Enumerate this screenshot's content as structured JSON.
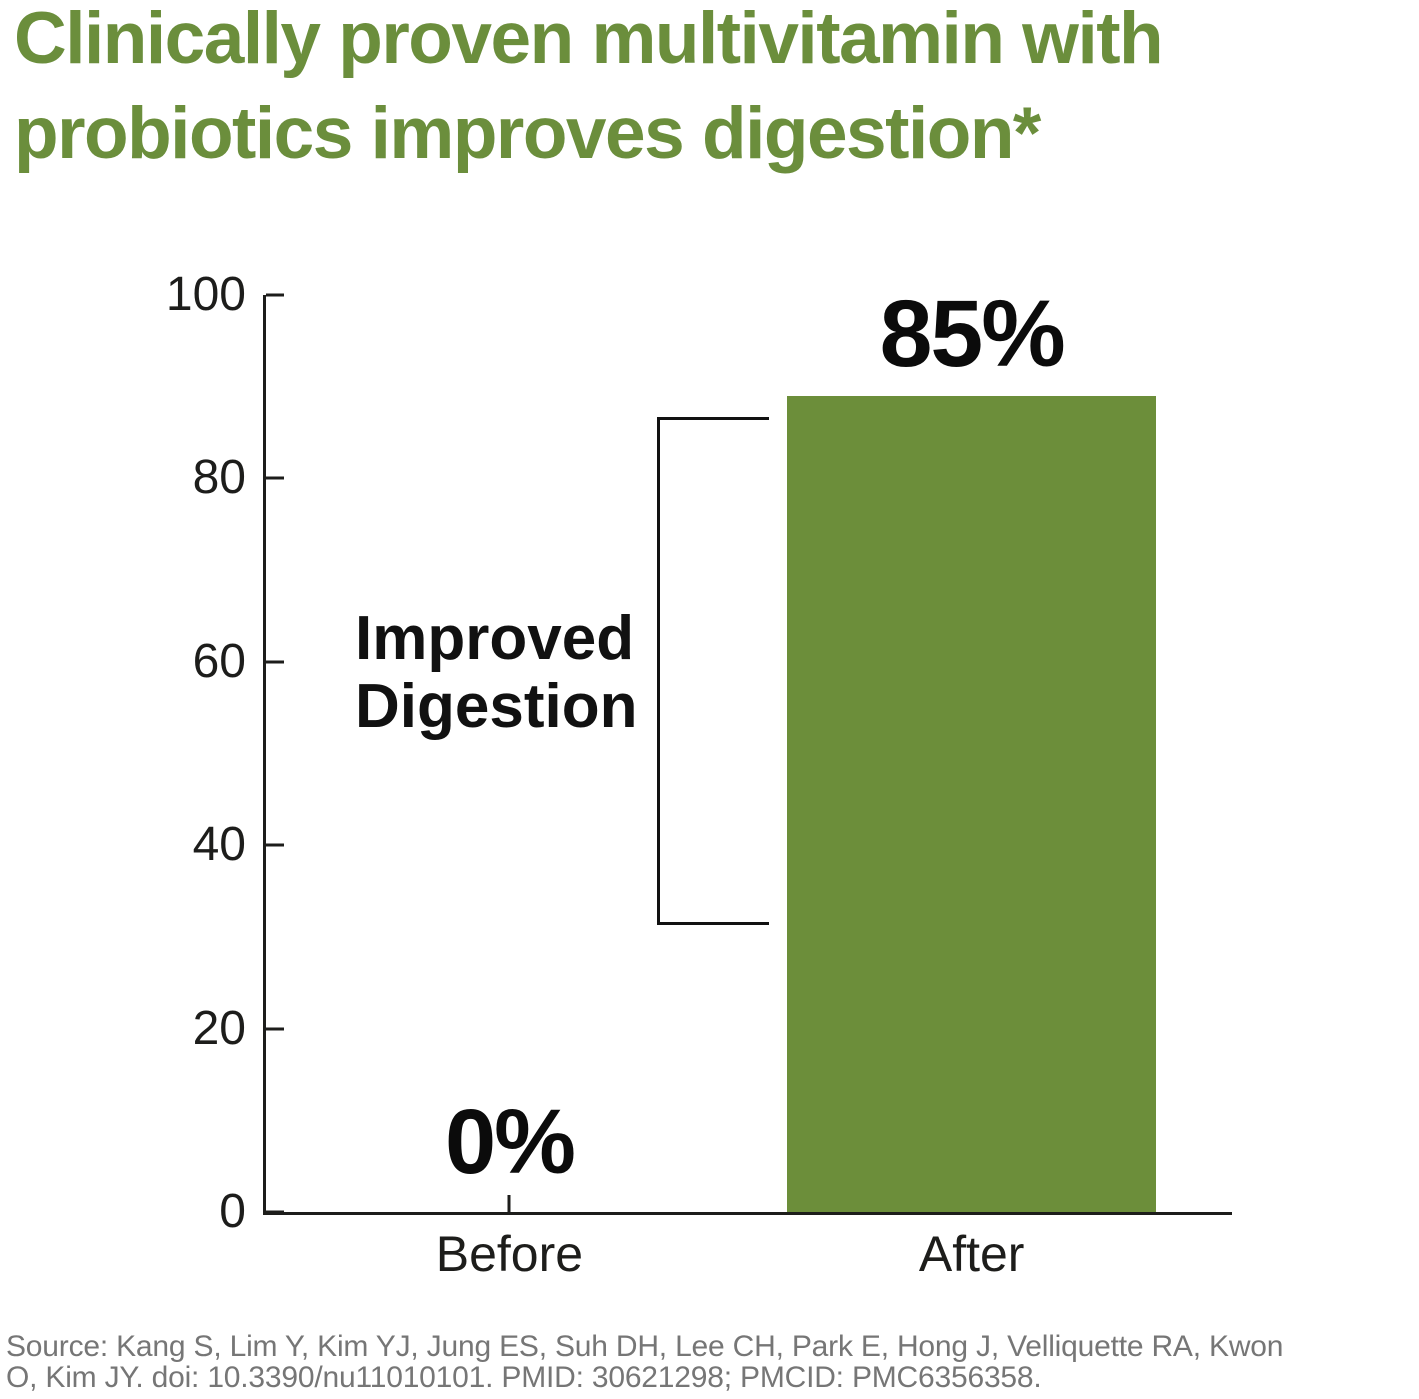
{
  "title": {
    "text": "Clinically proven multivitamin with probiotics improves digestion*",
    "lines": [
      "Clinically proven multivitamin with",
      "probiotics improves digestion*"
    ],
    "color": "#6b8e3c"
  },
  "chart_data": {
    "type": "bar",
    "categories": [
      "Before",
      "After"
    ],
    "values": [
      0,
      85
    ],
    "value_labels": [
      "0%",
      "85%"
    ],
    "ylim": [
      0,
      100
    ],
    "yticks": [
      0,
      20,
      40,
      60,
      80,
      100
    ],
    "rendered_heights_pct": [
      0,
      89
    ],
    "bar_color": "#6c8e3a",
    "axis_color": "#1d1d1b",
    "grid": false,
    "legend": false,
    "annotation": {
      "text": "Improved Digestion",
      "lines": [
        "Improved",
        "Digestion"
      ]
    }
  },
  "source": {
    "text": "Source: Kang S, Lim Y, Kim YJ, Jung ES, Suh DH, Lee CH, Park E, Hong J, Velliquette RA, Kwon O, Kim JY. doi: 10.3390/nu11010101. PMID: 30621298; PMCID: PMC6356358.",
    "lines": [
      "Source: Kang S, Lim Y, Kim YJ, Jung ES, Suh DH, Lee CH, Park E, Hong J, Velliquette RA, Kwon",
      "O, Kim JY. doi: 10.3390/nu11010101. PMID: 30621298; PMCID: PMC6356358."
    ]
  }
}
